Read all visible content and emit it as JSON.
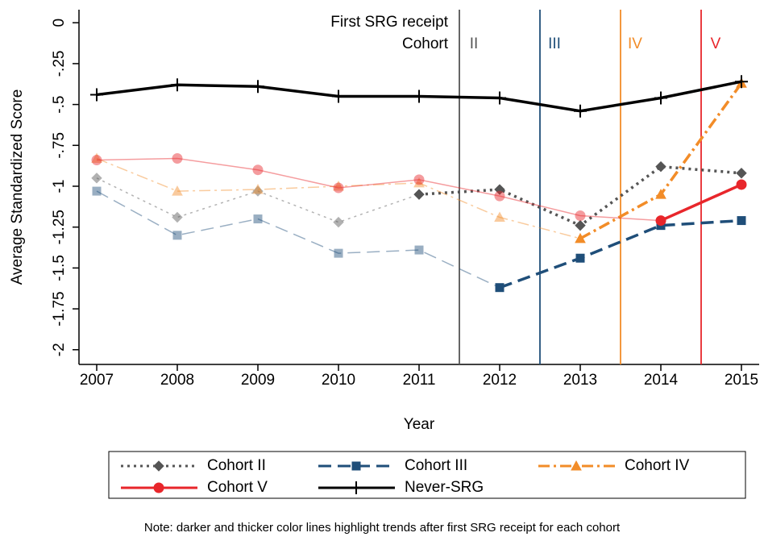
{
  "chart_data": {
    "type": "line",
    "x_label": "Year",
    "y_label": "Average Standardized Score",
    "note": "Note: darker and thicker color lines highlight trends after first SRG receipt for each cohort",
    "annotation_title": [
      "First SRG receipt",
      "Cohort"
    ],
    "x": [
      2007,
      2008,
      2009,
      2010,
      2011,
      2012,
      2013,
      2014,
      2015
    ],
    "xlim": [
      2006.78,
      2015.22
    ],
    "xticks": [
      2007,
      2008,
      2009,
      2010,
      2011,
      2012,
      2013,
      2014,
      2015
    ],
    "ylim": [
      -2.09,
      0.08
    ],
    "yticks": [
      0,
      {
        "value": -0.25,
        "label": "-.25"
      },
      {
        "value": -0.5,
        "label": "-.5"
      },
      {
        "value": -0.75,
        "label": "-.75"
      },
      -1,
      {
        "value": -1.25,
        "label": "-1.25"
      },
      {
        "value": -1.5,
        "label": "-1.5"
      },
      {
        "value": -1.75,
        "label": "-1.75"
      },
      -2
    ],
    "cohort_lines": [
      {
        "x": 2011.5,
        "label": "II",
        "color": "#555555"
      },
      {
        "x": 2012.5,
        "label": "III",
        "color": "#1f4e79"
      },
      {
        "x": 2013.5,
        "label": "IV",
        "color": "#f28c28"
      },
      {
        "x": 2014.5,
        "label": "V",
        "color": "#e8262b"
      }
    ],
    "series": [
      {
        "name": "Cohort II",
        "color": "#555555",
        "linestyle": "dotted",
        "marker": "diamond",
        "highlight_from": 2011,
        "values": [
          -0.95,
          -1.19,
          -1.03,
          -1.22,
          -1.05,
          -1.02,
          -1.24,
          -0.88,
          -0.92
        ]
      },
      {
        "name": "Cohort III",
        "color": "#1f4e79",
        "linestyle": "dashed",
        "marker": "square",
        "highlight_from": 2012,
        "values": [
          -1.03,
          -1.3,
          -1.2,
          -1.41,
          -1.39,
          -1.62,
          -1.44,
          -1.24,
          -1.21
        ]
      },
      {
        "name": "Cohort IV",
        "color": "#f28c28",
        "linestyle": "dashdot",
        "marker": "triangle",
        "highlight_from": 2013,
        "values": [
          -0.83,
          -1.03,
          -1.02,
          -1.0,
          -0.98,
          -1.19,
          -1.32,
          -1.05,
          -0.37
        ]
      },
      {
        "name": "Cohort V",
        "color": "#e8262b",
        "linestyle": "solid",
        "marker": "circle",
        "highlight_from": 2014,
        "values": [
          -0.84,
          -0.83,
          -0.9,
          -1.01,
          -0.96,
          -1.06,
          -1.18,
          -1.21,
          -0.99
        ]
      },
      {
        "name": "Never-SRG",
        "color": "#000000",
        "linestyle": "solid",
        "marker": "plus",
        "highlight_from": 2007,
        "values": [
          -0.44,
          -0.38,
          -0.39,
          -0.45,
          -0.45,
          -0.46,
          -0.54,
          -0.46,
          -0.36
        ]
      }
    ]
  }
}
